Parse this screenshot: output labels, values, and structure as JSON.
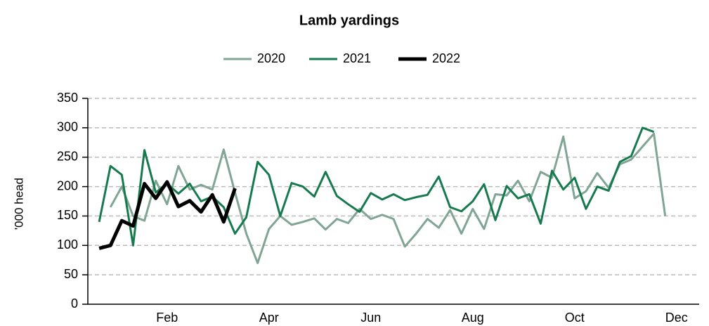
{
  "chart_data": {
    "type": "line",
    "title": "Lamb yardings",
    "y_label": "'000 head",
    "x": [
      1,
      2,
      3,
      4,
      5,
      6,
      7,
      8,
      9,
      10,
      11,
      12,
      13,
      14,
      15,
      16,
      17,
      18,
      19,
      20,
      21,
      22,
      23,
      24,
      25,
      26,
      27,
      28,
      29,
      30,
      31,
      32,
      33,
      34,
      35,
      36,
      37,
      38,
      39,
      40,
      41,
      42,
      43,
      44,
      45,
      46,
      47,
      48,
      49,
      50,
      51
    ],
    "series": [
      {
        "name": "2020",
        "color": "#80a595",
        "width": 3,
        "values": [
          null,
          165,
          200,
          150,
          142,
          210,
          170,
          235,
          195,
          203,
          195,
          263,
          190,
          120,
          70,
          128,
          150,
          135,
          140,
          146,
          127,
          145,
          138,
          162,
          145,
          152,
          145,
          98,
          120,
          145,
          130,
          160,
          120,
          162,
          128,
          187,
          185,
          210,
          175,
          225,
          215,
          285,
          180,
          192,
          223,
          198,
          238,
          246,
          268,
          290,
          150
        ]
      },
      {
        "name": "2021",
        "color": "#177a4f",
        "width": 3,
        "values": [
          140,
          235,
          220,
          100,
          262,
          190,
          205,
          188,
          205,
          175,
          183,
          165,
          120,
          148,
          242,
          220,
          150,
          206,
          200,
          183,
          225,
          184,
          170,
          157,
          189,
          178,
          187,
          177,
          182,
          186,
          217,
          165,
          158,
          175,
          204,
          143,
          201,
          180,
          187,
          137,
          227,
          195,
          215,
          162,
          200,
          193,
          242,
          252,
          300,
          293,
          null
        ]
      },
      {
        "name": "2022",
        "color": "#000000",
        "width": 5,
        "values": [
          95,
          100,
          142,
          133,
          205,
          180,
          208,
          166,
          176,
          157,
          186,
          140,
          197,
          null,
          null,
          null,
          null,
          null,
          null,
          null,
          null,
          null,
          null,
          null,
          null,
          null,
          null,
          null,
          null,
          null,
          null,
          null,
          null,
          null,
          null,
          null,
          null,
          null,
          null,
          null,
          null,
          null,
          null,
          null,
          null,
          null,
          null,
          null,
          null,
          null,
          null
        ]
      }
    ],
    "xlim": [
      0,
      54
    ],
    "xticks": [
      {
        "value": 7,
        "label": "Feb"
      },
      {
        "value": 16,
        "label": "Apr"
      },
      {
        "value": 25,
        "label": "Jun"
      },
      {
        "value": 34,
        "label": "Aug"
      },
      {
        "value": 43,
        "label": "Oct"
      },
      {
        "value": 52,
        "label": "Dec"
      }
    ],
    "ylim": [
      0,
      350
    ],
    "yticks": [
      0,
      50,
      100,
      150,
      200,
      250,
      300,
      350
    ],
    "grid": true,
    "legend": "top"
  }
}
